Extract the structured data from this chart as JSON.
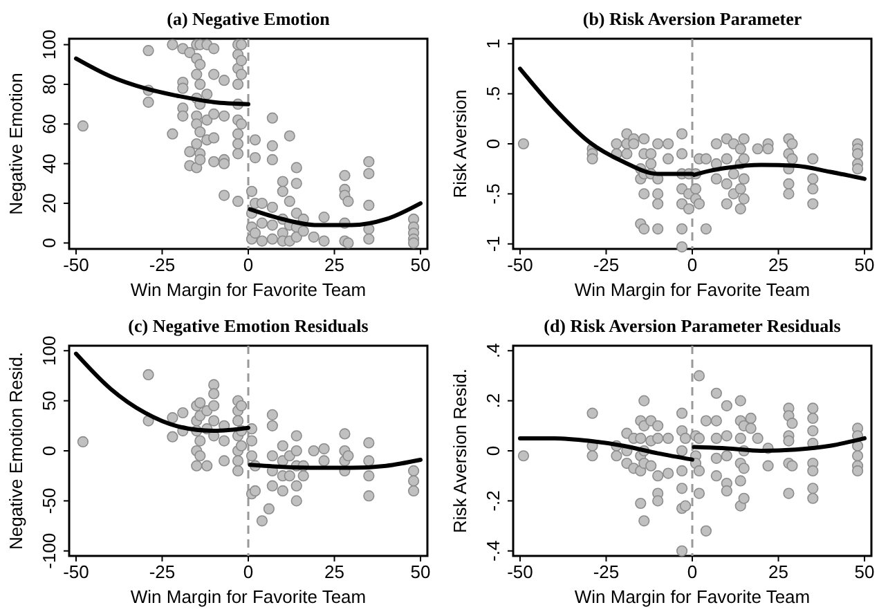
{
  "chart_data": [
    {
      "type": "scatter",
      "title": "(a) Negative Emotion",
      "xlabel": "Win Margin for Favorite Team",
      "ylabel": "Negative Emotion",
      "xlim": [
        -52,
        52
      ],
      "xticks": [
        -50,
        -25,
        0,
        25,
        50
      ],
      "ylim": [
        -3,
        103
      ],
      "yticks": [
        0,
        20,
        40,
        60,
        80,
        100
      ],
      "ref_lines": [
        {
          "axis": "x",
          "value": 0,
          "color": "#999999",
          "line_style": "dashed"
        }
      ],
      "series": [
        {
          "type": "scatter",
          "marker": "circle",
          "color": "#c0c0c0",
          "x": [
            -48,
            -29,
            -29,
            -29,
            -22,
            -22,
            -19,
            -19,
            -19,
            -19,
            -19,
            -17,
            -17,
            -17,
            -15,
            -15,
            -15,
            -15,
            -15,
            -15,
            -15,
            -15,
            -14,
            -14,
            -14,
            -14,
            -14,
            -14,
            -14,
            -12,
            -12,
            -12,
            -12,
            -10,
            -10,
            -10,
            -10,
            -10,
            -7,
            -7,
            -7,
            -7,
            -7,
            -3,
            -3,
            -3,
            -3,
            -3,
            -3,
            -3,
            -3,
            -3,
            -3,
            -2,
            -2,
            -2,
            -2,
            1,
            1,
            1,
            1,
            2,
            2,
            2,
            2,
            4,
            4,
            4,
            7,
            7,
            7,
            7,
            7,
            7,
            10,
            10,
            10,
            10,
            10,
            12,
            12,
            12,
            12,
            14,
            14,
            14,
            14,
            14,
            16,
            16,
            19,
            22,
            22,
            28,
            28,
            28,
            28,
            28,
            29,
            29,
            35,
            35,
            35,
            35,
            35,
            48,
            48,
            48,
            48,
            48
          ],
          "values": [
            59,
            97,
            77,
            71,
            100,
            55,
            98,
            81,
            78,
            68,
            64,
            96,
            46,
            39,
            100,
            93,
            85,
            73,
            64,
            60,
            50,
            38,
            100,
            90,
            80,
            70,
            56,
            45,
            42,
            100,
            75,
            62,
            52,
            98,
            85,
            65,
            53,
            41,
            82,
            64,
            42,
            40,
            24,
            100,
            95,
            88,
            80,
            70,
            62,
            55,
            50,
            45,
            21,
            100,
            92,
            85,
            60,
            26,
            15,
            8,
            2,
            52,
            43,
            20,
            5,
            20,
            10,
            1,
            63,
            49,
            42,
            18,
            9,
            2,
            31,
            26,
            12,
            5,
            1,
            54,
            21,
            9,
            1,
            38,
            30,
            15,
            8,
            3,
            12,
            6,
            3,
            13,
            1,
            34,
            27,
            24,
            10,
            1,
            21,
            0,
            41,
            35,
            19,
            7,
            2,
            12,
            8,
            5,
            2,
            0
          ]
        },
        {
          "type": "line",
          "line_style": "solid",
          "color": "#000000",
          "x": [
            -50,
            -40,
            -30,
            -20,
            -10,
            0
          ],
          "values": [
            93,
            84,
            78,
            74,
            71,
            70
          ]
        },
        {
          "type": "line",
          "line_style": "solid",
          "color": "#000000",
          "x": [
            0.5,
            10,
            20,
            30,
            40,
            50
          ],
          "values": [
            17,
            12,
            9,
            9,
            12,
            20
          ]
        }
      ]
    },
    {
      "type": "scatter",
      "title": "(b) Risk Aversion Parameter",
      "xlabel": "Win Margin for Favorite Team",
      "ylabel": "Risk Aversion",
      "xlim": [
        -52,
        52
      ],
      "xticks": [
        -50,
        -25,
        0,
        25,
        50
      ],
      "ylim": [
        -1.05,
        1.05
      ],
      "yticks": [
        {
          "value": -1,
          "label": "-1"
        },
        {
          "value": -0.5,
          "label": "-.5"
        },
        {
          "value": 0,
          "label": "0"
        },
        {
          "value": 0.5,
          "label": ".5"
        },
        {
          "value": 1,
          "label": "1"
        }
      ],
      "ref_lines": [
        {
          "axis": "x",
          "value": 0,
          "color": "#999999",
          "line_style": "dashed"
        }
      ],
      "series": [
        {
          "type": "scatter",
          "marker": "circle",
          "color": "#c0c0c0",
          "x": [
            -49,
            -29,
            -29,
            -29,
            -22,
            -22,
            -19,
            -19,
            -19,
            -17,
            -17,
            -15,
            -15,
            -15,
            -14,
            -14,
            -14,
            -14,
            -14,
            -12,
            -12,
            -12,
            -10,
            -10,
            -10,
            -10,
            -10,
            -7,
            -7,
            -3,
            -3,
            -3,
            -3,
            -3,
            -3,
            -3,
            -1,
            -1,
            -1,
            1,
            1,
            1,
            2,
            2,
            4,
            4,
            7,
            7,
            7,
            10,
            10,
            10,
            10,
            12,
            12,
            12,
            14,
            14,
            14,
            14,
            15,
            15,
            15,
            15,
            19,
            22,
            22,
            28,
            28,
            28,
            28,
            28,
            29,
            29,
            35,
            35,
            35,
            35,
            48,
            48,
            48,
            48,
            48
          ],
          "values": [
            0,
            -0.05,
            -0.1,
            -0.15,
            0,
            -0.1,
            0.1,
            0,
            -0.1,
            0.05,
            0,
            -0.25,
            -0.35,
            -0.8,
            0.05,
            -0.1,
            -0.3,
            -0.5,
            -0.85,
            -0.1,
            -0.2,
            -0.3,
            0,
            -0.35,
            -0.5,
            -0.6,
            -0.85,
            0,
            -0.15,
            0.1,
            -0.1,
            -0.3,
            -0.45,
            -0.6,
            -0.85,
            -1.03,
            -0.3,
            -0.5,
            -0.65,
            -0.3,
            -0.45,
            -0.55,
            -0.15,
            -0.6,
            -0.15,
            -0.85,
            0,
            -0.2,
            -0.35,
            0.05,
            -0.15,
            -0.4,
            -0.6,
            0,
            -0.3,
            -0.5,
            -0.05,
            -0.2,
            -0.45,
            -0.65,
            0.05,
            -0.15,
            -0.35,
            -0.55,
            -0.05,
            0,
            -0.05,
            0.05,
            -0.1,
            -0.25,
            -0.4,
            -0.5,
            0,
            -0.15,
            -0.15,
            -0.35,
            -0.45,
            -0.6,
            0,
            -0.05,
            -0.1,
            -0.2,
            -0.25
          ]
        },
        {
          "type": "line",
          "line_style": "solid",
          "color": "#000000",
          "x": [
            -50,
            -40,
            -30,
            -20,
            -10,
            0
          ],
          "values": [
            0.75,
            0.35,
            0.02,
            -0.18,
            -0.3,
            -0.3
          ]
        },
        {
          "type": "line",
          "line_style": "solid",
          "color": "#000000",
          "x": [
            0.5,
            5,
            10,
            20,
            30,
            40,
            50
          ],
          "values": [
            -0.31,
            -0.27,
            -0.24,
            -0.21,
            -0.22,
            -0.28,
            -0.35
          ]
        }
      ]
    },
    {
      "type": "scatter",
      "title": "(c) Negative Emotion Residuals",
      "xlabel": "Win Margin for Favorite Team",
      "ylabel": "Negative Emotion Resid.",
      "xlim": [
        -52,
        52
      ],
      "xticks": [
        -50,
        -25,
        0,
        25,
        50
      ],
      "ylim": [
        -105,
        105
      ],
      "yticks": [
        -100,
        -50,
        0,
        50,
        100
      ],
      "ref_lines": [
        {
          "axis": "x",
          "value": 0,
          "color": "#999999",
          "line_style": "dashed"
        }
      ],
      "series": [
        {
          "type": "scatter",
          "marker": "circle",
          "color": "#c0c0c0",
          "x": [
            -48,
            -29,
            -29,
            -22,
            -22,
            -19,
            -19,
            -15,
            -15,
            -15,
            -15,
            -15,
            -14,
            -14,
            -14,
            -14,
            -12,
            -12,
            -12,
            -10,
            -10,
            -10,
            -10,
            -10,
            -7,
            -7,
            -7,
            -3,
            -3,
            -3,
            -3,
            -3,
            -3,
            -3,
            -2,
            -2,
            -2,
            1,
            1,
            1,
            1,
            2,
            2,
            4,
            6,
            7,
            7,
            7,
            7,
            7,
            10,
            10,
            10,
            10,
            12,
            12,
            14,
            14,
            14,
            14,
            14,
            16,
            16,
            19,
            22,
            22,
            28,
            28,
            28,
            28,
            29,
            35,
            35,
            35,
            35,
            48,
            48,
            48
          ],
          "values": [
            9,
            76,
            30,
            33,
            14,
            38,
            20,
            45,
            30,
            20,
            0,
            -15,
            48,
            35,
            10,
            -5,
            40,
            22,
            -15,
            66,
            57,
            45,
            30,
            15,
            25,
            10,
            -10,
            50,
            40,
            30,
            15,
            0,
            -10,
            -20,
            45,
            20,
            5,
            22,
            10,
            -5,
            -43,
            -15,
            -40,
            -70,
            -58,
            36,
            25,
            -5,
            -20,
            -35,
            5,
            -10,
            -25,
            -40,
            -5,
            -25,
            15,
            0,
            -15,
            -35,
            -50,
            -15,
            -25,
            0,
            2,
            -10,
            17,
            0,
            -10,
            -20,
            -5,
            8,
            -10,
            -25,
            -45,
            -20,
            -30,
            -40
          ]
        },
        {
          "type": "line",
          "line_style": "solid",
          "color": "#000000",
          "x": [
            -50,
            -40,
            -30,
            -20,
            -10,
            0
          ],
          "values": [
            97,
            62,
            38,
            24,
            20,
            23
          ]
        },
        {
          "type": "line",
          "line_style": "solid",
          "color": "#000000",
          "x": [
            0.5,
            10,
            20,
            30,
            40,
            50
          ],
          "values": [
            -14,
            -16,
            -17,
            -17,
            -15,
            -9
          ]
        }
      ]
    },
    {
      "type": "scatter",
      "title": "(d) Risk Aversion Parameter Residuals",
      "xlabel": "Win Margin for Favorite Team",
      "ylabel": "Risk Aversion Resid.",
      "xlim": [
        -52,
        52
      ],
      "xticks": [
        -50,
        -25,
        0,
        25,
        50
      ],
      "ylim": [
        -0.42,
        0.42
      ],
      "yticks": [
        {
          "value": -0.4,
          "label": "-.4"
        },
        {
          "value": -0.2,
          "label": "-.2"
        },
        {
          "value": 0,
          "label": "0"
        },
        {
          "value": 0.2,
          "label": ".2"
        },
        {
          "value": 0.4,
          "label": ".4"
        }
      ],
      "ref_lines": [
        {
          "axis": "x",
          "value": 0,
          "color": "#999999",
          "line_style": "dashed"
        }
      ],
      "series": [
        {
          "type": "scatter",
          "marker": "circle",
          "color": "#c0c0c0",
          "x": [
            -49,
            -29,
            -29,
            -29,
            -22,
            -22,
            -19,
            -19,
            -19,
            -17,
            -17,
            -15,
            -15,
            -15,
            -15,
            -15,
            -14,
            -14,
            -14,
            -14,
            -14,
            -12,
            -12,
            -12,
            -10,
            -10,
            -10,
            -10,
            -10,
            -7,
            -7,
            -3,
            -3,
            -3,
            -3,
            -3,
            -3,
            -3,
            -2,
            -2,
            1,
            1,
            1,
            2,
            2,
            2,
            2,
            4,
            4,
            7,
            7,
            7,
            7,
            7,
            10,
            10,
            10,
            10,
            10,
            14,
            14,
            14,
            14,
            14,
            14,
            15,
            15,
            15,
            15,
            17,
            17,
            19,
            22,
            22,
            28,
            28,
            28,
            28,
            28,
            28,
            29,
            29,
            35,
            35,
            35,
            35,
            35,
            35,
            35,
            35,
            48,
            48,
            48,
            48,
            48,
            48
          ],
          "values": [
            -0.02,
            0.15,
            0.02,
            -0.02,
            0.02,
            -0.02,
            0.07,
            0,
            -0.05,
            0.05,
            -0.07,
            0.12,
            0.05,
            -0.02,
            -0.08,
            -0.21,
            0.2,
            0.1,
            0,
            -0.05,
            -0.28,
            0.12,
            0.04,
            -0.06,
            0.1,
            0.05,
            -0.1,
            -0.17,
            -0.2,
            0.05,
            -0.09,
            0.15,
            0.08,
            0,
            -0.08,
            -0.15,
            -0.23,
            -0.4,
            0.05,
            -0.22,
            0.06,
            -0.02,
            -0.05,
            0.3,
            0.05,
            -0.08,
            -0.17,
            0.12,
            -0.32,
            0.23,
            0.12,
            0.05,
            -0.03,
            -0.1,
            0.18,
            0.06,
            -0.02,
            -0.13,
            -0.16,
            0.2,
            0.12,
            0.05,
            -0.05,
            -0.12,
            -0.22,
            0.1,
            0,
            -0.07,
            -0.19,
            0.13,
            0.09,
            0.05,
            0.01,
            -0.06,
            0.17,
            0.14,
            0.06,
            0.04,
            -0.05,
            -0.17,
            0.11,
            -0.06,
            0.17,
            0.13,
            0.08,
            0.03,
            -0.05,
            -0.08,
            -0.15,
            -0.19,
            0.09,
            0.06,
            0.02,
            -0.02,
            -0.06,
            -0.08
          ]
        },
        {
          "type": "line",
          "line_style": "solid",
          "color": "#000000",
          "x": [
            -50,
            -40,
            -30,
            -20,
            -10,
            0
          ],
          "values": [
            0.05,
            0.05,
            0.04,
            0.02,
            -0.01,
            -0.035
          ]
        },
        {
          "type": "line",
          "line_style": "solid",
          "color": "#000000",
          "x": [
            0.5,
            10,
            20,
            30,
            40,
            50
          ],
          "values": [
            0.015,
            0.01,
            0,
            0.005,
            0.02,
            0.05
          ]
        }
      ]
    }
  ]
}
